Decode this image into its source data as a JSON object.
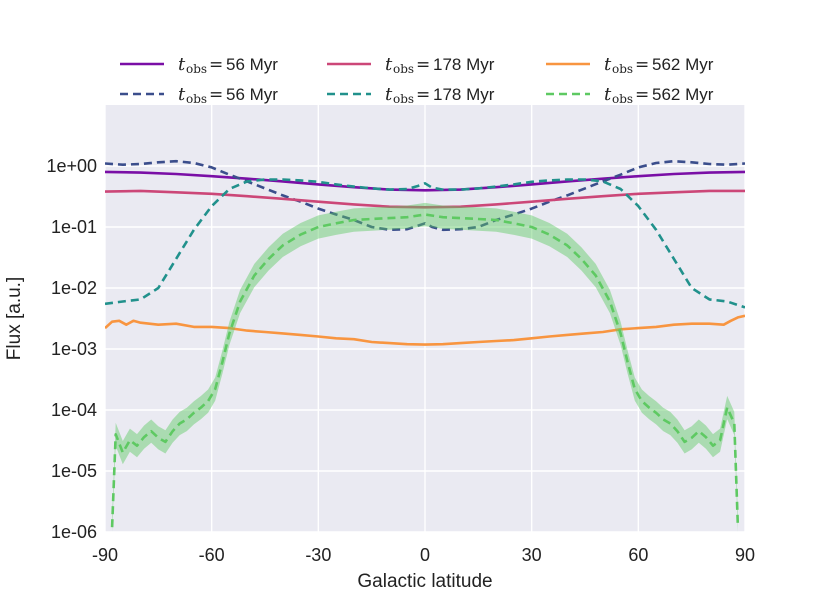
{
  "chart_data": {
    "type": "line",
    "title": "",
    "xlabel": "Galactic latitude",
    "ylabel": "Flux [a.u.]",
    "xlim": [
      -90,
      90
    ],
    "ylim": [
      1e-06,
      10
    ],
    "yscale": "log",
    "grid": true,
    "background": "#eaeaf2",
    "legend_placement": "top, above plot, 3 columns",
    "x_ticks": [
      -90,
      -60,
      -30,
      0,
      30,
      60,
      90
    ],
    "x_tick_labels": [
      "-90",
      "-60",
      "-30",
      "0",
      "30",
      "60",
      "90"
    ],
    "y_ticks": [
      1e-06,
      1e-05,
      0.0001,
      0.001,
      0.01,
      0.1,
      1
    ],
    "y_tick_labels": [
      "1e-06",
      "1e-05",
      "1e-04",
      "1e-03",
      "1e-02",
      "1e-01",
      "1e+00"
    ],
    "series": [
      {
        "name": "t_obs = 56 Myr",
        "legend_math": {
          "sym": "t",
          "sub": "obs",
          "value": "56 Myr"
        },
        "color": "#7a0fa6",
        "dashed": false,
        "x": [
          -90,
          -80,
          -70,
          -60,
          -50,
          -40,
          -30,
          -20,
          -10,
          0,
          10,
          20,
          30,
          40,
          50,
          60,
          70,
          80,
          90
        ],
        "y": [
          0.8,
          0.78,
          0.74,
          0.68,
          0.62,
          0.56,
          0.5,
          0.45,
          0.41,
          0.4,
          0.41,
          0.45,
          0.5,
          0.56,
          0.62,
          0.68,
          0.74,
          0.78,
          0.8
        ]
      },
      {
        "name": "t_obs = 56 Myr",
        "legend_math": {
          "sym": "t",
          "sub": "obs",
          "value": "56 Myr"
        },
        "color": "#3b4e8c",
        "dashed": true,
        "x": [
          -90,
          -85,
          -80,
          -75,
          -70,
          -65,
          -60,
          -55,
          -50,
          -45,
          -40,
          -35,
          -30,
          -25,
          -20,
          -15,
          -10,
          -5,
          -2,
          0,
          2,
          5,
          10,
          15,
          20,
          25,
          30,
          35,
          40,
          45,
          50,
          55,
          60,
          65,
          70,
          75,
          80,
          85,
          90
        ],
        "y": [
          1.1,
          1.05,
          1.08,
          1.15,
          1.2,
          1.12,
          0.95,
          0.72,
          0.56,
          0.43,
          0.33,
          0.26,
          0.2,
          0.16,
          0.13,
          0.1,
          0.09,
          0.092,
          0.105,
          0.115,
          0.1,
          0.09,
          0.092,
          0.1,
          0.13,
          0.16,
          0.2,
          0.26,
          0.33,
          0.43,
          0.56,
          0.72,
          0.95,
          1.12,
          1.2,
          1.15,
          1.08,
          1.05,
          1.1
        ]
      },
      {
        "name": "t_obs = 178 Myr",
        "legend_math": {
          "sym": "t",
          "sub": "obs",
          "value": "178 Myr"
        },
        "color": "#cc4778",
        "dashed": false,
        "x": [
          -90,
          -80,
          -70,
          -60,
          -50,
          -40,
          -30,
          -20,
          -10,
          0,
          10,
          20,
          30,
          40,
          50,
          60,
          70,
          80,
          90
        ],
        "y": [
          0.38,
          0.39,
          0.37,
          0.35,
          0.32,
          0.29,
          0.26,
          0.235,
          0.215,
          0.21,
          0.215,
          0.235,
          0.26,
          0.29,
          0.32,
          0.35,
          0.37,
          0.39,
          0.39
        ]
      },
      {
        "name": "t_obs = 178 Myr",
        "legend_math": {
          "sym": "t",
          "sub": "obs",
          "value": "178 Myr"
        },
        "color": "#21918c",
        "dashed": true,
        "x": [
          -90,
          -85,
          -80,
          -75,
          -70,
          -65,
          -60,
          -55,
          -50,
          -45,
          -40,
          -35,
          -30,
          -25,
          -20,
          -15,
          -10,
          -5,
          -2,
          0,
          2,
          5,
          10,
          15,
          20,
          25,
          30,
          35,
          40,
          45,
          50,
          55,
          60,
          65,
          70,
          75,
          80,
          85,
          90
        ],
        "y": [
          0.0055,
          0.006,
          0.0065,
          0.01,
          0.03,
          0.09,
          0.22,
          0.42,
          0.56,
          0.6,
          0.6,
          0.58,
          0.55,
          0.5,
          0.46,
          0.43,
          0.41,
          0.42,
          0.47,
          0.52,
          0.44,
          0.41,
          0.41,
          0.43,
          0.46,
          0.5,
          0.55,
          0.58,
          0.6,
          0.6,
          0.56,
          0.42,
          0.22,
          0.09,
          0.03,
          0.01,
          0.0065,
          0.006,
          0.0048
        ]
      },
      {
        "name": "t_obs = 562 Myr",
        "legend_math": {
          "sym": "t",
          "sub": "obs",
          "value": "562 Myr"
        },
        "color": "#f89540",
        "dashed": false,
        "x": [
          -90,
          -88,
          -86,
          -84,
          -82,
          -80,
          -75,
          -70,
          -65,
          -60,
          -55,
          -50,
          -45,
          -40,
          -35,
          -30,
          -25,
          -20,
          -15,
          -10,
          -5,
          0,
          5,
          10,
          15,
          20,
          25,
          30,
          35,
          40,
          45,
          50,
          55,
          60,
          65,
          70,
          75,
          80,
          84,
          86,
          88,
          90
        ],
        "y": [
          0.0022,
          0.0028,
          0.0029,
          0.0025,
          0.0029,
          0.0027,
          0.0025,
          0.0026,
          0.0023,
          0.0023,
          0.0022,
          0.002,
          0.0019,
          0.0018,
          0.0017,
          0.0016,
          0.0015,
          0.00145,
          0.0013,
          0.00125,
          0.0012,
          0.00118,
          0.0012,
          0.00125,
          0.0013,
          0.00135,
          0.0014,
          0.0015,
          0.0016,
          0.0017,
          0.0018,
          0.0019,
          0.0021,
          0.0022,
          0.0023,
          0.0025,
          0.0026,
          0.0026,
          0.0025,
          0.0029,
          0.0033,
          0.0035
        ]
      },
      {
        "name": "t_obs = 562 Myr",
        "legend_math": {
          "sym": "t",
          "sub": "obs",
          "value": "562 Myr"
        },
        "color": "#5ec962",
        "dashed": true,
        "x": [
          -88,
          -87,
          -85,
          -83,
          -81,
          -79,
          -77,
          -75,
          -73,
          -71,
          -69,
          -67,
          -65,
          -63,
          -61,
          -59,
          -57,
          -55,
          -52,
          -48,
          -44,
          -40,
          -35,
          -30,
          -25,
          -20,
          -15,
          -10,
          -5,
          0,
          5,
          10,
          15,
          20,
          25,
          30,
          35,
          40,
          44,
          48,
          52,
          55,
          57,
          59,
          61,
          63,
          65,
          67,
          69,
          71,
          73,
          75,
          77,
          79,
          81,
          83,
          85,
          87,
          88
        ],
        "y": [
          1.2e-06,
          4e-05,
          2e-05,
          3.2e-05,
          2.6e-05,
          3.6e-05,
          4.5e-05,
          3.5e-05,
          3e-05,
          4.5e-05,
          6e-05,
          7e-05,
          9e-05,
          0.00011,
          0.00014,
          0.00022,
          0.0006,
          0.0018,
          0.006,
          0.016,
          0.03,
          0.05,
          0.075,
          0.1,
          0.115,
          0.13,
          0.135,
          0.14,
          0.145,
          0.16,
          0.145,
          0.14,
          0.135,
          0.13,
          0.115,
          0.1,
          0.075,
          0.05,
          0.03,
          0.016,
          0.006,
          0.0018,
          0.0006,
          0.00022,
          0.00014,
          0.00011,
          9e-05,
          7e-05,
          6e-05,
          4.5e-05,
          3e-05,
          3.5e-05,
          4.5e-05,
          3.6e-05,
          2.6e-05,
          3.2e-05,
          0.00011,
          6e-05,
          1.2e-06
        ],
        "band": true
      }
    ]
  }
}
